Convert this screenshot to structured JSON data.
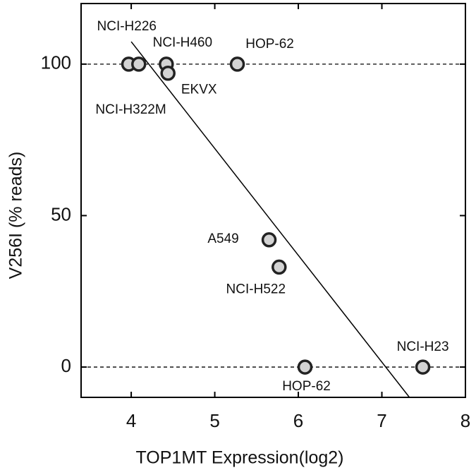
{
  "chart_data": {
    "type": "scatter",
    "x_label": "TOP1MT Expression(log2)",
    "y_label": "V256I (% reads)",
    "x": [
      3.97,
      4.09,
      4.42,
      4.44,
      5.27,
      5.65,
      5.77,
      6.08,
      7.49
    ],
    "values": [
      100,
      100,
      100,
      97,
      100,
      42,
      33,
      0,
      0
    ],
    "labels": [
      "NCI-H322M",
      "NCI-H226",
      "NCI-H460",
      "EKVX",
      "HOP-62",
      "A549",
      "NCI-H522",
      "HOP-62",
      "NCI-H23"
    ],
    "color": "#d3d3d3",
    "xlim": [
      3.4,
      8
    ],
    "xticks": [
      4,
      5,
      6,
      7,
      8
    ],
    "ylim": [
      -10,
      120
    ],
    "yticks": [
      0,
      50,
      100
    ],
    "reference_lines": [
      0,
      100
    ],
    "fit_line": {
      "x": [
        4.0,
        7.33
      ],
      "y": [
        107.4,
        -10
      ]
    }
  }
}
